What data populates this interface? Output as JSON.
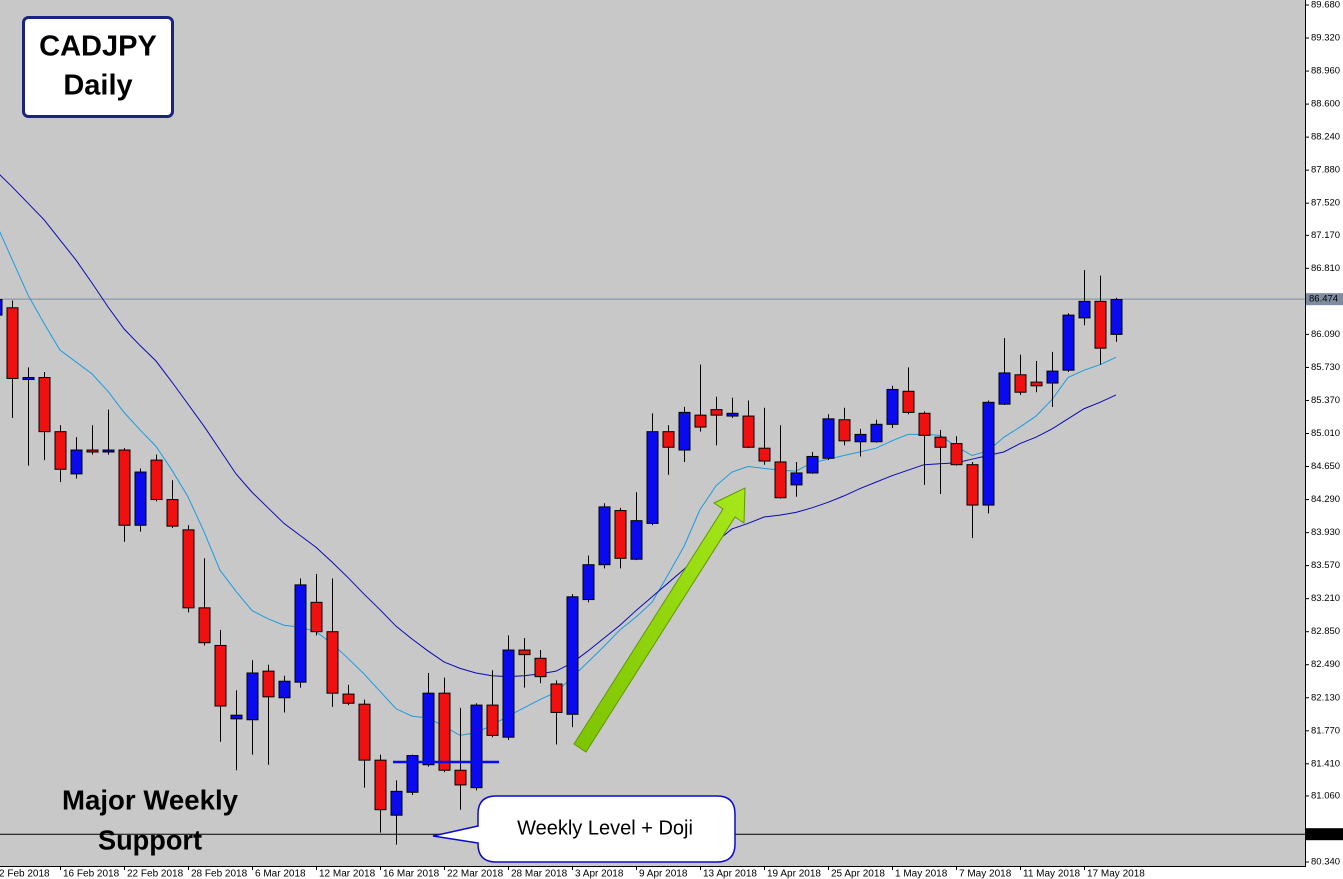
{
  "chart_data": {
    "type": "candlestick",
    "title": "CADJPY",
    "subtitle": "Daily",
    "annotations": {
      "support": [
        "Major Weekly",
        "Support"
      ],
      "callout": "Weekly Level + Doji"
    },
    "categories": [
      "2 Feb 2018",
      null,
      null,
      null,
      "16 Feb 2018",
      null,
      null,
      null,
      "22 Feb 2018",
      null,
      null,
      null,
      "28 Feb 2018",
      null,
      null,
      null,
      "6 Mar 2018",
      null,
      null,
      null,
      "12 Mar 2018",
      null,
      null,
      null,
      "16 Mar 2018",
      null,
      null,
      null,
      "22 Mar 2018",
      null,
      null,
      null,
      "28 Mar 2018",
      null,
      null,
      null,
      "3 Apr 2018",
      null,
      null,
      null,
      "9 Apr 2018",
      null,
      null,
      null,
      "13 Apr 2018",
      null,
      null,
      null,
      "19 Apr 2018",
      null,
      null,
      null,
      "25 Apr 2018",
      null,
      null,
      null,
      "1 May 2018",
      null,
      null,
      null,
      "7 May 2018",
      null,
      null,
      null,
      "11 May 2018",
      null,
      null,
      null,
      "17 May 2018",
      null,
      null
    ],
    "open": [
      86.3,
      86.38,
      85.6,
      85.62,
      85.03,
      84.57,
      84.83,
      84.82,
      84.83,
      84.01,
      84.72,
      84.29,
      83.96,
      83.11,
      82.7,
      81.9,
      81.89,
      82.42,
      82.13,
      82.3,
      83.17,
      82.85,
      82.17,
      82.06,
      81.45,
      80.85,
      81.1,
      81.4,
      82.18,
      81.34,
      81.15,
      82.05,
      81.7,
      82.65,
      82.56,
      82.28,
      81.95,
      83.2,
      83.58,
      84.17,
      83.64,
      84.03,
      85.03,
      84.83,
      85.21,
      85.27,
      85.2,
      85.2,
      84.85,
      84.7,
      84.45,
      84.58,
      84.74,
      85.16,
      84.92,
      84.92,
      85.11,
      85.47,
      85.23,
      84.97,
      84.9,
      84.67,
      84.23,
      85.33,
      85.65,
      85.57,
      85.56,
      85.7,
      86.27,
      86.45,
      86.09
    ],
    "high": [
      86.5,
      86.46,
      85.73,
      85.68,
      85.1,
      84.97,
      85.1,
      85.27,
      84.85,
      84.63,
      84.78,
      84.5,
      84.01,
      83.65,
      82.87,
      82.21,
      82.54,
      82.49,
      82.37,
      83.43,
      83.48,
      83.43,
      82.27,
      82.11,
      81.51,
      81.23,
      81.51,
      82.4,
      82.35,
      82.02,
      82.07,
      82.43,
      82.81,
      82.78,
      82.65,
      82.32,
      83.26,
      83.68,
      84.25,
      84.2,
      84.37,
      85.23,
      85.1,
      85.3,
      85.76,
      85.41,
      85.4,
      85.37,
      85.29,
      85.1,
      84.7,
      84.81,
      85.22,
      85.29,
      85.06,
      85.16,
      85.53,
      85.73,
      85.25,
      85.05,
      84.98,
      84.7,
      85.37,
      86.05,
      85.87,
      85.8,
      85.9,
      86.32,
      86.79,
      86.73,
      86.49
    ],
    "low": [
      86.2,
      85.18,
      84.66,
      84.72,
      84.48,
      84.52,
      84.78,
      84.78,
      83.83,
      83.94,
      84.27,
      83.98,
      83.06,
      82.7,
      81.65,
      81.34,
      81.51,
      81.4,
      81.97,
      82.24,
      82.81,
      82.03,
      82.05,
      81.15,
      80.66,
      80.53,
      81.07,
      81.38,
      81.32,
      80.91,
      81.12,
      81.7,
      81.67,
      82.24,
      82.29,
      81.62,
      81.81,
      83.17,
      83.54,
      83.54,
      83.63,
      84.01,
      84.56,
      84.7,
      85.03,
      84.88,
      85.18,
      84.85,
      84.67,
      84.3,
      84.32,
      84.57,
      84.72,
      84.88,
      84.76,
      84.91,
      85.07,
      85.22,
      84.45,
      84.35,
      84.66,
      83.87,
      84.14,
      85.32,
      85.43,
      85.46,
      85.3,
      85.68,
      86.19,
      85.76,
      86.01
    ],
    "close": [
      86.47,
      85.61,
      85.62,
      85.03,
      84.62,
      84.83,
      84.82,
      84.83,
      84.01,
      84.59,
      84.29,
      84.0,
      83.11,
      82.73,
      82.04,
      81.94,
      82.4,
      82.14,
      82.31,
      83.36,
      82.85,
      82.18,
      82.07,
      81.45,
      80.91,
      81.11,
      81.5,
      82.18,
      81.34,
      81.18,
      82.05,
      81.72,
      82.65,
      82.6,
      82.36,
      81.97,
      83.23,
      83.58,
      84.21,
      83.65,
      84.06,
      85.03,
      84.86,
      85.24,
      85.08,
      85.21,
      85.23,
      84.86,
      84.71,
      84.31,
      84.58,
      84.76,
      85.17,
      84.93,
      85.0,
      85.11,
      85.49,
      85.24,
      84.99,
      84.86,
      84.67,
      84.23,
      85.35,
      85.67,
      85.46,
      85.53,
      85.69,
      86.3,
      86.45,
      85.94,
      86.47
    ],
    "up_color": "#0a0aee",
    "down_color": "#f01010",
    "lines": [
      {
        "color": "#1c9be0",
        "values": [
          87.3,
          86.91,
          86.52,
          86.21,
          85.92,
          85.79,
          85.66,
          85.47,
          85.24,
          85.05,
          84.87,
          84.61,
          84.32,
          83.94,
          83.52,
          83.29,
          83.08,
          82.99,
          82.92,
          82.9,
          82.85,
          82.72,
          82.56,
          82.39,
          82.2,
          82.01,
          81.93,
          81.91,
          81.82,
          81.72,
          81.75,
          81.83,
          81.93,
          82.02,
          82.11,
          82.19,
          82.35,
          82.52,
          82.69,
          82.87,
          83.01,
          83.17,
          83.47,
          83.78,
          84.18,
          84.44,
          84.59,
          84.65,
          84.63,
          84.61,
          84.6,
          84.69,
          84.73,
          84.77,
          84.81,
          84.85,
          84.93,
          85.0,
          85.0,
          84.99,
          84.87,
          84.77,
          84.82,
          84.97,
          85.08,
          85.2,
          85.38,
          85.62,
          85.7,
          85.76,
          85.84
        ]
      },
      {
        "color": "#0a0ab4",
        "values": [
          87.87,
          87.7,
          87.52,
          87.34,
          87.12,
          86.9,
          86.65,
          86.39,
          86.15,
          85.97,
          85.8,
          85.57,
          85.33,
          85.09,
          84.83,
          84.57,
          84.37,
          84.2,
          84.03,
          83.9,
          83.77,
          83.61,
          83.44,
          83.26,
          83.09,
          82.91,
          82.77,
          82.64,
          82.52,
          82.45,
          82.4,
          82.37,
          82.36,
          82.37,
          82.39,
          82.42,
          82.51,
          82.64,
          82.78,
          82.92,
          83.08,
          83.23,
          83.38,
          83.53,
          83.69,
          83.83,
          83.97,
          84.03,
          84.1,
          84.12,
          84.15,
          84.2,
          84.26,
          84.33,
          84.41,
          84.48,
          84.55,
          84.61,
          84.67,
          84.68,
          84.69,
          84.73,
          84.77,
          84.81,
          84.9,
          84.97,
          85.06,
          85.17,
          85.28,
          85.35,
          85.43
        ]
      }
    ],
    "hlines": [
      {
        "value": 86.474,
        "label": "86.474",
        "color": "#7d8ca0"
      },
      {
        "value": 80.643,
        "label": "80.643",
        "color": "#000000"
      }
    ],
    "ylim": [
      80.34,
      89.68
    ],
    "yticks": [
      {
        "value": 80.34,
        "label": "80.340"
      },
      {
        "value": 81.06,
        "label": "81.060"
      },
      {
        "value": 81.41,
        "label": "81.410"
      },
      {
        "value": 81.77,
        "label": "81.770"
      },
      {
        "value": 82.13,
        "label": "82.130"
      },
      {
        "value": 82.49,
        "label": "82.490"
      },
      {
        "value": 82.85,
        "label": "82.850"
      },
      {
        "value": 83.21,
        "label": "83.210"
      },
      {
        "value": 83.57,
        "label": "83.570"
      },
      {
        "value": 83.93,
        "label": "83.930"
      },
      {
        "value": 84.29,
        "label": "84.290"
      },
      {
        "value": 84.65,
        "label": "84.650"
      },
      {
        "value": 85.01,
        "label": "85.010"
      },
      {
        "value": 85.37,
        "label": "85.370"
      },
      {
        "value": 85.73,
        "label": "85.730"
      },
      {
        "value": 86.09,
        "label": "86.090"
      },
      {
        "value": 86.81,
        "label": "86.810"
      },
      {
        "value": 87.17,
        "label": "87.170"
      },
      {
        "value": 87.52,
        "label": "87.520"
      },
      {
        "value": 87.88,
        "label": "87.880"
      },
      {
        "value": 88.24,
        "label": "88.240"
      },
      {
        "value": 88.6,
        "label": "88.600"
      },
      {
        "value": 88.96,
        "label": "88.960"
      },
      {
        "value": 89.32,
        "label": "89.320"
      },
      {
        "value": 89.68,
        "label": "89.680"
      }
    ]
  }
}
